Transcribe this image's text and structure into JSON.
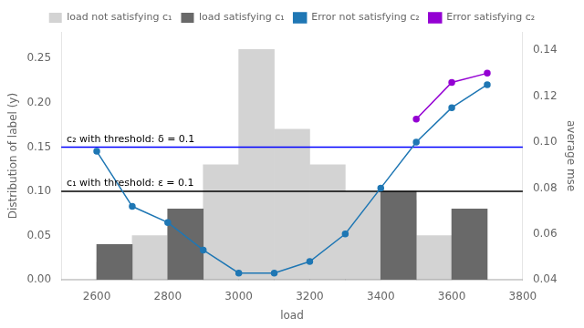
{
  "chart_data": {
    "type": "bar",
    "xlabel": "load",
    "ylabel": "Distribution of label (y)",
    "y2label": "average mse",
    "xlim": [
      2500,
      3800
    ],
    "xticks": [
      2600,
      2800,
      3000,
      3200,
      3400,
      3600,
      3800
    ],
    "ylim": [
      0.0,
      0.28
    ],
    "yticks": [
      {
        "value": 0.0,
        "label": "0.00"
      },
      0.05,
      {
        "value": 0.1,
        "label": "0.10"
      },
      0.15,
      {
        "value": 0.2,
        "label": "0.20"
      },
      0.25
    ],
    "y2lim": [
      0.04,
      0.148
    ],
    "y2ticks": [
      0.04,
      0.06,
      0.08,
      {
        "value": 0.1,
        "label": "0.10"
      },
      0.12,
      0.14
    ],
    "grid": false,
    "legend": "top",
    "bins": [
      2500,
      2600,
      2700,
      2800,
      2900,
      3000,
      3100,
      3200,
      3300,
      3400,
      3500,
      3600,
      3700,
      3800
    ],
    "series": [
      {
        "name": "load not satisfying c₁",
        "type": "bar",
        "color": "#d3d3d3",
        "values": [
          0.0,
          0.02,
          0.05,
          0.08,
          0.13,
          0.26,
          0.17,
          0.13,
          0.1,
          0.09,
          0.05,
          0.0,
          0.0
        ]
      },
      {
        "name": "load satisfying c₁",
        "type": "bar",
        "color": "#696969",
        "values": [
          0.0,
          0.04,
          0.0,
          0.08,
          0.0,
          0.0,
          0.0,
          0.0,
          0.0,
          0.1,
          0.0,
          0.08,
          0.0
        ]
      },
      {
        "name": "Error not satisfying c₂",
        "type": "line",
        "color": "#1f77b4",
        "marker": "circle",
        "axis": "y2",
        "x": [
          2600,
          2700,
          2800,
          2900,
          3000,
          3100,
          3200,
          3300,
          3400,
          3500,
          3600,
          3700
        ],
        "values": [
          0.096,
          0.072,
          0.065,
          0.053,
          0.043,
          0.043,
          0.048,
          0.06,
          0.08,
          0.1,
          0.115,
          0.125
        ]
      },
      {
        "name": "Error satisfying c₂",
        "type": "line",
        "color": "#9400d3",
        "marker": "circle",
        "axis": "y2",
        "x": [
          3500,
          3600,
          3700
        ],
        "values": [
          0.11,
          0.126,
          0.13
        ]
      }
    ],
    "hlines": [
      {
        "y": 0.1,
        "color": "#000000",
        "label": "c₁ with threshold: ε = 0.1"
      },
      {
        "y": 0.15,
        "color": "#0000ff",
        "label": "c₂ with threshold: δ = 0.1"
      }
    ]
  }
}
